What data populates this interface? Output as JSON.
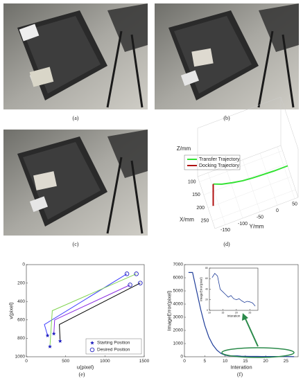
{
  "captions": [
    "(a)",
    "(b)",
    "(c)",
    "(d)",
    "(e)",
    "(f)"
  ],
  "chart_data": [
    {
      "type": "line3d",
      "xlabel": "X/mm",
      "ylabel": "Y/mm",
      "zlabel": "Z/mm",
      "xlim": [
        80,
        280
      ],
      "ylim": [
        -180,
        60
      ],
      "zlim": [
        0,
        100
      ],
      "xticks": [
        100,
        150,
        200,
        250
      ],
      "yticks": [
        -150,
        -100,
        -50,
        0,
        50
      ],
      "series": [
        {
          "name": "Transfer Trajectory",
          "color": "#33e233",
          "x": [
            200,
            200,
            200,
            200,
            200,
            200,
            200,
            200,
            200
          ],
          "y": [
            -165,
            -140,
            -110,
            -80,
            -50,
            -20,
            10,
            30,
            50
          ],
          "z": [
            45,
            38,
            33,
            29,
            27,
            26,
            25,
            25,
            25
          ]
        },
        {
          "name": "Docking Trajectory",
          "color": "#b01010",
          "x": [
            200,
            200
          ],
          "y": [
            -165,
            -165
          ],
          "z": [
            45,
            0
          ]
        }
      ]
    },
    {
      "type": "trajectory",
      "xlabel": "u(pixel)",
      "ylabel": "v(pixel)",
      "xlim": [
        0,
        1500
      ],
      "ylim": [
        0,
        1000
      ],
      "y_reversed": true,
      "xticks": [
        0,
        500,
        1000,
        1500
      ],
      "yticks": [
        0,
        200,
        400,
        600,
        800,
        1000
      ],
      "series": [
        {
          "color": "#3b3bff",
          "x": [
            270,
            230,
            1280
          ],
          "y": [
            770,
            650,
            100
          ]
        },
        {
          "color": "#7fd34e",
          "x": [
            300,
            330,
            1400
          ],
          "y": [
            890,
            500,
            100
          ]
        },
        {
          "color": "#000000",
          "x": [
            430,
            420,
            1450
          ],
          "y": [
            830,
            650,
            200
          ]
        },
        {
          "color": "#8a2be2",
          "x": [
            350,
            360,
            1320
          ],
          "y": [
            750,
            600,
            220
          ]
        }
      ],
      "marker_color": "#1f1fbf",
      "legend": [
        {
          "name": "Starting Position",
          "marker": "star"
        },
        {
          "name": "Desired Position",
          "marker": "circle"
        }
      ],
      "legend_position": "lower right"
    },
    {
      "type": "line",
      "xlabel": "Interation",
      "ylabel": "ImageError(pixel)",
      "xlim": [
        0,
        28
      ],
      "ylim": [
        0,
        7000
      ],
      "xticks": [
        0,
        5,
        10,
        15,
        20,
        25
      ],
      "yticks": [
        0,
        1000,
        2000,
        3000,
        4000,
        5000,
        6000,
        7000
      ],
      "color": "#1f3d99",
      "x": [
        1,
        2,
        3,
        4,
        5,
        6,
        7,
        8,
        9,
        10,
        11,
        12,
        13,
        14,
        15,
        16,
        17,
        18,
        19,
        20,
        21,
        22,
        23,
        24,
        25,
        26,
        27
      ],
      "values": [
        6400,
        6400,
        5000,
        3600,
        2400,
        1500,
        900,
        500,
        250,
        120,
        62,
        70,
        65,
        40,
        35,
        30,
        25,
        28,
        22,
        20,
        22,
        18,
        15,
        17,
        16,
        14,
        8
      ],
      "inset": {
        "xlabel": "Interation",
        "ylabel": "ImageError(pixel)",
        "xlim": [
          10,
          28
        ],
        "ylim": [
          0,
          80
        ],
        "xticks": [
          10,
          15,
          20,
          25
        ],
        "yticks": [
          0,
          20,
          40,
          60,
          80
        ],
        "x": [
          11,
          12,
          13,
          14,
          15,
          16,
          17,
          18,
          19,
          20,
          21,
          22,
          23,
          24,
          25,
          26,
          27
        ],
        "values": [
          62,
          70,
          65,
          40,
          35,
          30,
          25,
          28,
          22,
          20,
          22,
          18,
          15,
          17,
          16,
          14,
          8
        ]
      }
    }
  ]
}
